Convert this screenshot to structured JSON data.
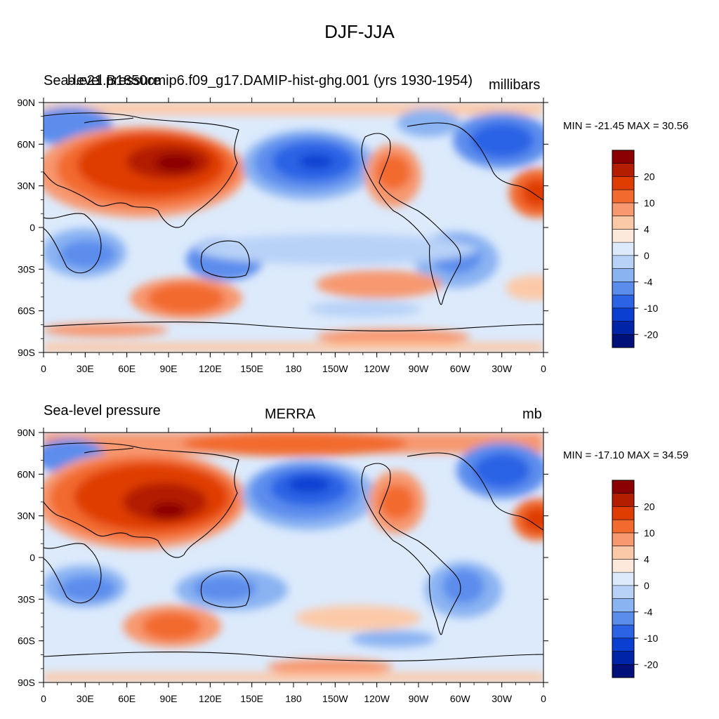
{
  "main_title": "DJF-JJA",
  "panels": [
    {
      "left_title": "Sea-level pressure",
      "center_title": "b.e21.B1850cmip6.f09_g17.DAMIP-hist-ghg.001 (yrs 1930-1954)",
      "right_title": "millibars",
      "min_max": "MIN = -21.45 MAX =  30.56"
    },
    {
      "left_title": "Sea-level pressure",
      "center_title": "MERRA",
      "right_title": "mb",
      "min_max": "MIN = -17.10 MAX =  34.59"
    }
  ],
  "lon_ticks": [
    "0",
    "30E",
    "60E",
    "90E",
    "120E",
    "150E",
    "180",
    "150W",
    "120W",
    "90W",
    "60W",
    "30W",
    "0"
  ],
  "lat_ticks": [
    "90N",
    "60N",
    "30N",
    "0",
    "30S",
    "60S",
    "90S"
  ],
  "colorbar": {
    "labels": [
      "20",
      "10",
      "4",
      "0",
      "-4",
      "-10",
      "-20"
    ],
    "colors": [
      "#8b0000",
      "#b31e00",
      "#df3c00",
      "#f26a2e",
      "#f79870",
      "#fcc9a8",
      "#fde9db",
      "#dceafc",
      "#b8d2f7",
      "#8ab3f2",
      "#5b8ded",
      "#2c63e5",
      "#0a3fd1",
      "#0024a8",
      "#00107a"
    ]
  }
}
